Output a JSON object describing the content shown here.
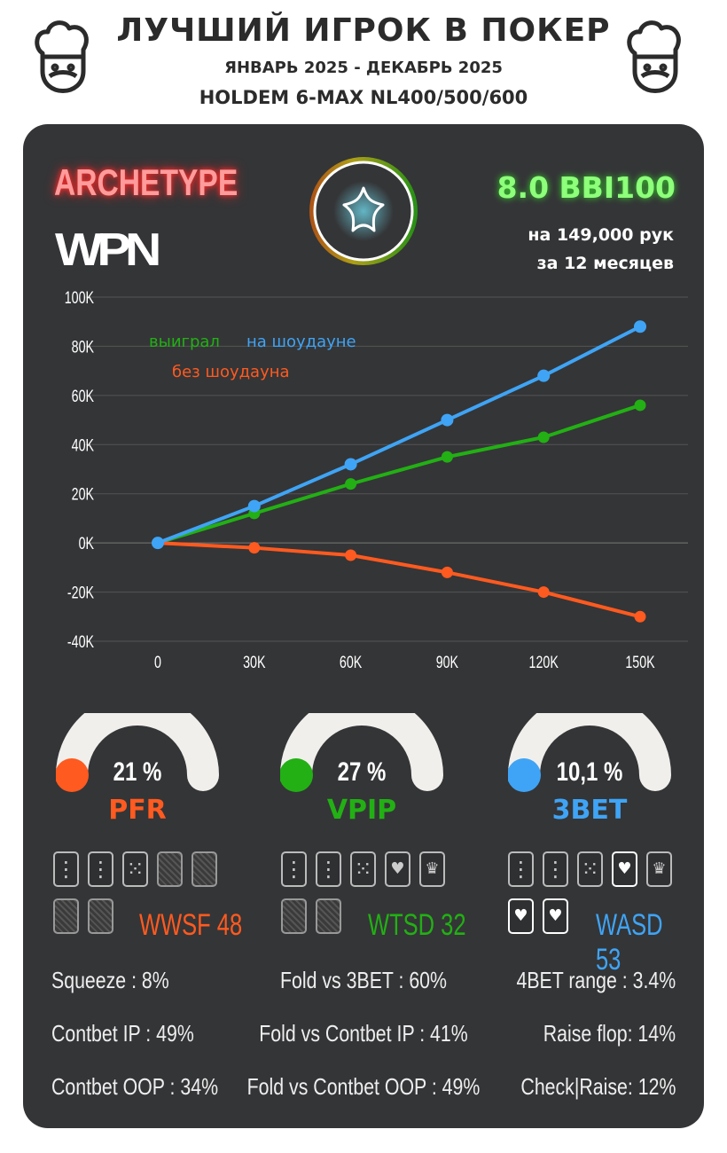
{
  "header": {
    "title": "ЛУЧШИЙ ИГРОК В ПОКЕР",
    "period": "ЯНВАРЬ 2025 - ДЕКАБРЬ 2025",
    "game": "HOLDEM 6-MAX NL400/500/600"
  },
  "profile": {
    "archetype": "ARCHETYPE",
    "network_logo": "WPN",
    "winrate": "8.0 BBI100",
    "hands": "на 149,000 рук",
    "months": "за  12 месяцев",
    "badge_icon": "star-icon"
  },
  "colors": {
    "won": "#22b014",
    "showdown": "#3fa4f5",
    "nonshowdown": "#ff5a1f",
    "card_bg": "#343537"
  },
  "chart_data": {
    "type": "line",
    "xlabel": "",
    "ylabel": "",
    "x": [
      0,
      30000,
      60000,
      90000,
      120000,
      150000
    ],
    "xticks": [
      "0",
      "30K",
      "60K",
      "90K",
      "120K",
      "150K"
    ],
    "yticks": [
      "100K",
      "80K",
      "60K",
      "40K",
      "20K",
      "0K",
      "-20K",
      "-40K"
    ],
    "ylim": [
      -40000,
      100000
    ],
    "xlim": [
      0,
      150000
    ],
    "grid": true,
    "legend": [
      "выиграл",
      "на шоудауне",
      "без шоудауна"
    ],
    "series": [
      {
        "name": "выиграл",
        "color": "#22b014",
        "values": [
          0,
          12000,
          24000,
          35000,
          43000,
          56000
        ]
      },
      {
        "name": "на шоудауне",
        "color": "#3fa4f5",
        "values": [
          0,
          15000,
          32000,
          50000,
          68000,
          88000
        ]
      },
      {
        "name": "без шоудауна",
        "color": "#ff5a1f",
        "values": [
          0,
          -2000,
          -5000,
          -12000,
          -20000,
          -30000
        ]
      }
    ]
  },
  "gauges": [
    {
      "label": "PFR",
      "value": "21 %",
      "percent": 21,
      "color": "#ff5a1f"
    },
    {
      "label": "VPIP",
      "value": "27 %",
      "percent": 27,
      "color": "#22b014"
    },
    {
      "label": "3BET",
      "value": "10,1 %",
      "percent": 10.1,
      "color": "#3fa4f5"
    }
  ],
  "card_groups": [
    {
      "label": "WWSF 48",
      "color": "#ff5a1f",
      "cards": [
        "3",
        "3",
        "5",
        "back",
        "back",
        "back",
        "back"
      ]
    },
    {
      "label": "WTSD 32",
      "color": "#22b014",
      "cards": [
        "3",
        "3",
        "5",
        "heart",
        "king",
        "back",
        "back"
      ]
    },
    {
      "label": "WASD 53",
      "color": "#3fa4f5",
      "cards": [
        "3",
        "3",
        "5",
        "heart-w",
        "king",
        "heart-w",
        "heart-w"
      ]
    }
  ],
  "stats": [
    [
      "Squeeze : 8%",
      "Fold vs 3BET : 60%",
      "4BET range : 3.4%"
    ],
    [
      "Contbet IP : 49%",
      "Fold vs Contbet IP : 41%",
      "Raise flop: 14%"
    ],
    [
      "Contbet OOP : 34%",
      "Fold vs Contbet OOP : 49%",
      "Check|Raise: 12%"
    ]
  ]
}
